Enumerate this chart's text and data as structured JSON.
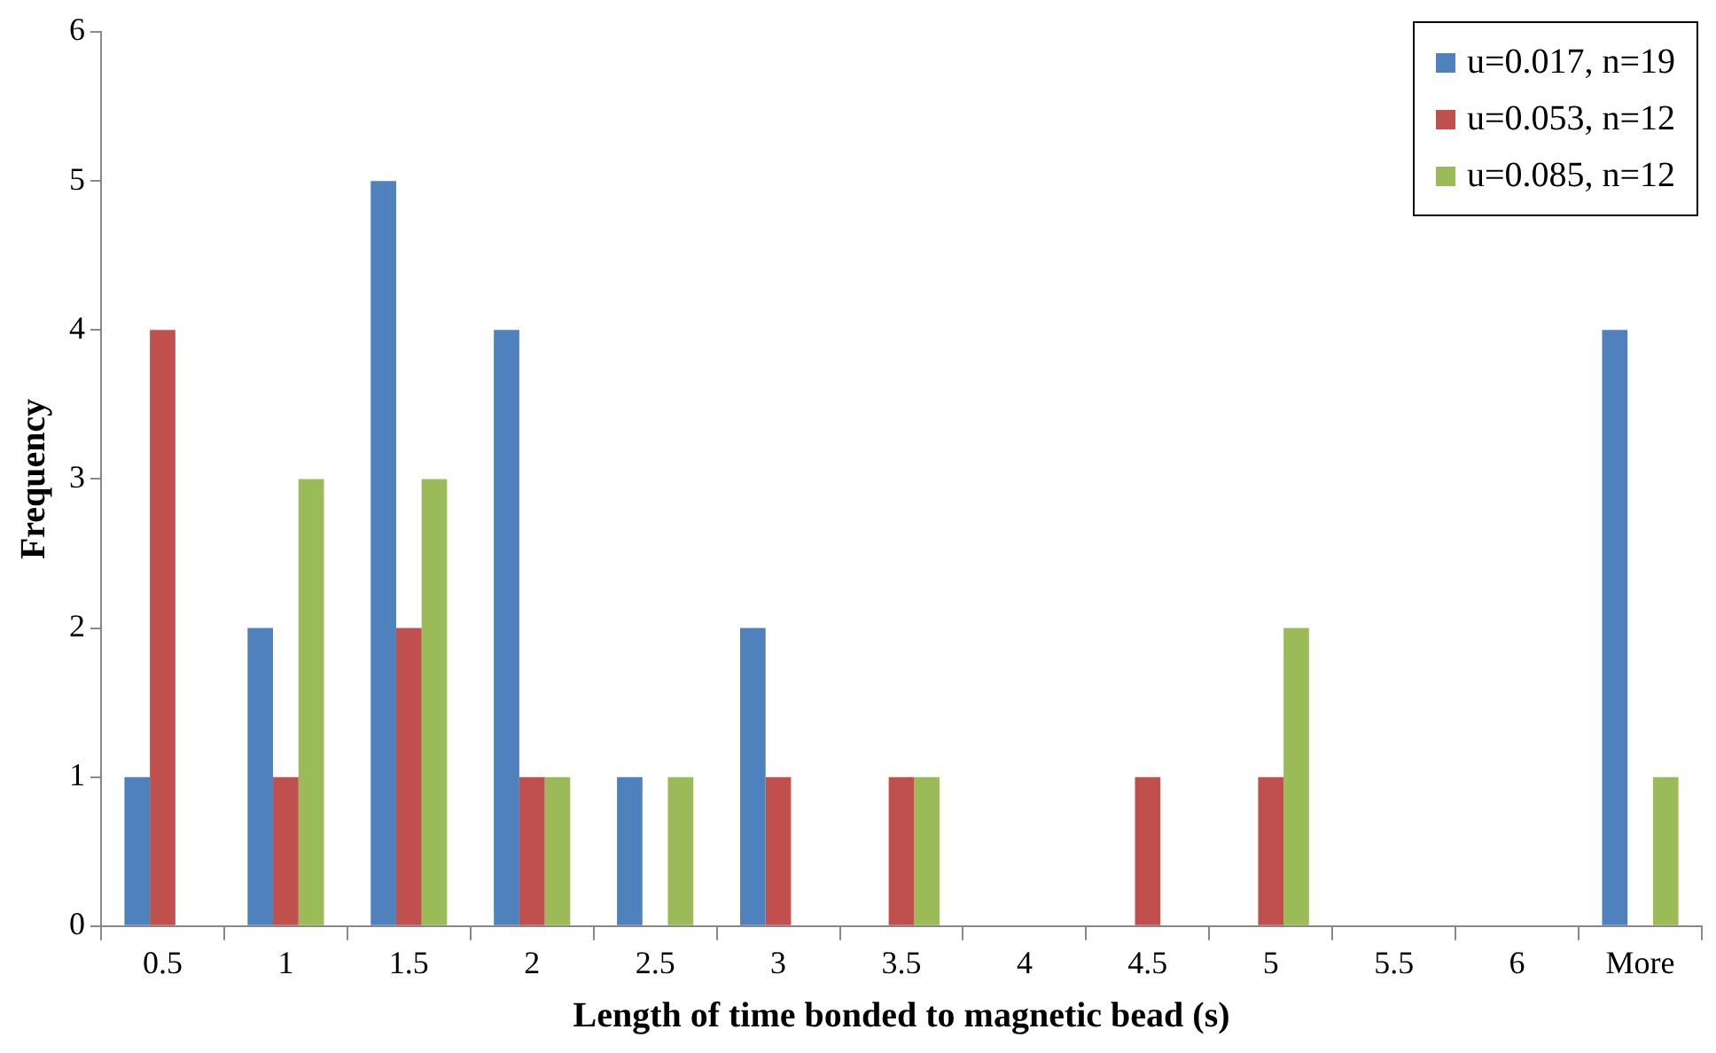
{
  "chart_data": {
    "type": "bar",
    "xlabel": "Length of time bonded to magnetic bead (s)",
    "ylabel": "Frequency",
    "categories": [
      "0.5",
      "1",
      "1.5",
      "2",
      "2.5",
      "3",
      "3.5",
      "4",
      "4.5",
      "5",
      "5.5",
      "6",
      "More"
    ],
    "series": [
      {
        "name": "u=0.017, n=19",
        "color": "#4f81bd",
        "values": [
          1,
          2,
          5,
          4,
          1,
          2,
          0,
          0,
          0,
          0,
          0,
          0,
          4
        ]
      },
      {
        "name": "u=0.053, n=12",
        "color": "#c0504d",
        "values": [
          4,
          1,
          2,
          1,
          0,
          1,
          1,
          0,
          1,
          1,
          0,
          0,
          0
        ]
      },
      {
        "name": "u=0.085, n=12",
        "color": "#9bbb59",
        "values": [
          0,
          3,
          3,
          1,
          1,
          0,
          1,
          0,
          0,
          2,
          0,
          0,
          1
        ]
      }
    ],
    "ylim": [
      0,
      6
    ],
    "yticks": [
      0,
      1,
      2,
      3,
      4,
      5,
      6
    ],
    "grid": false,
    "legend": "top right"
  }
}
